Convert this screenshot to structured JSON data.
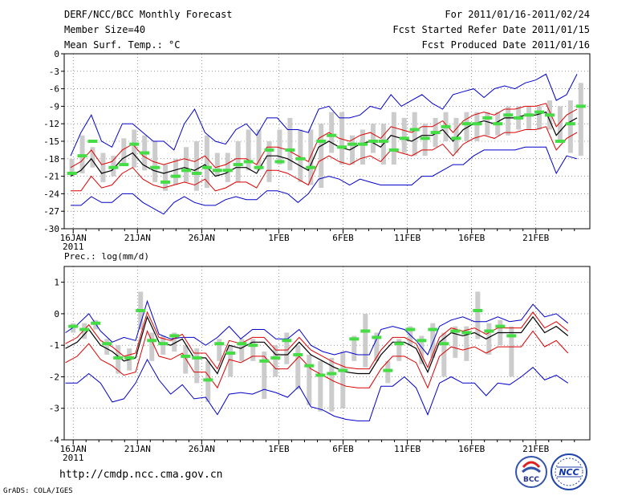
{
  "header": {
    "title": "DERF/NCC/BCC Monthly Forecast",
    "member_size": "Member Size=40",
    "variable": "Mean Surf. Temp.: °C",
    "period": "For 2011/01/16-2011/02/24",
    "fcst_started": "Fcst Started Refer Date 2011/01/15",
    "fcst_produced": "Fcst Produced Date 2011/01/16"
  },
  "footer": {
    "url": "http://cmdp.ncc.cma.gov.cn",
    "grads": "GrADS: COLA/IGES",
    "logo_bcc": "BCC",
    "logo_ncc": "NCC"
  },
  "colors": {
    "mean": "#000000",
    "inner_band": "#dd0000",
    "outer_band": "#0000cc",
    "observed": "#44dd44",
    "range_bar": "#cccccc",
    "grid": "#555555"
  },
  "chart_data": [
    {
      "type": "line",
      "title": "Mean Surf. Temp.: °C",
      "year_label": "2011",
      "x_tick_labels": [
        "16JAN",
        "21JAN",
        "26JAN",
        "1FEB",
        "6FEB",
        "11FEB",
        "16FEB",
        "21FEB"
      ],
      "x_tick_days": [
        1,
        6,
        11,
        17,
        22,
        27,
        32,
        37
      ],
      "ylim": [
        -30,
        0
      ],
      "yticks": [
        0,
        -3,
        -6,
        -9,
        -12,
        -15,
        -18,
        -21,
        -24,
        -27,
        -30
      ],
      "series": [
        {
          "name": "ensemble-mean",
          "values": [
            -21,
            -20,
            -18,
            -20.5,
            -20,
            -18,
            -17,
            -19,
            -20,
            -20.5,
            -20,
            -19.5,
            -20,
            -19,
            -21,
            -20.5,
            -19.5,
            -19.5,
            -20.5,
            -17.5,
            -17.5,
            -18,
            -19,
            -20,
            -16,
            -15,
            -16,
            -16.5,
            -15.5,
            -15,
            -16,
            -14,
            -14.5,
            -15,
            -14,
            -14,
            -13,
            -15,
            -13,
            -12,
            -11.5,
            -12,
            -11,
            -11,
            -10.5,
            -10.5,
            -10,
            -14,
            -12,
            -11
          ]
        },
        {
          "name": "inner-upper",
          "values": [
            -19.5,
            -18.5,
            -16.5,
            -19,
            -18.5,
            -16.5,
            -15.5,
            -17.5,
            -18.5,
            -19,
            -18.5,
            -18,
            -18.5,
            -17.5,
            -19.5,
            -19,
            -18,
            -18,
            -19,
            -16,
            -16,
            -16.5,
            -17.5,
            -18.5,
            -14.5,
            -13.5,
            -14.5,
            -15,
            -14,
            -13.5,
            -14.5,
            -12.5,
            -13,
            -13.5,
            -12.5,
            -12.5,
            -11.5,
            -13.5,
            -11.5,
            -10.5,
            -10,
            -10.5,
            -9.5,
            -9.5,
            -9,
            -9,
            -8.5,
            -12.5,
            -10.5,
            -9.5
          ]
        },
        {
          "name": "inner-lower",
          "values": [
            -23.5,
            -23.5,
            -21,
            -23,
            -22.5,
            -20.5,
            -19.5,
            -21.5,
            -22.5,
            -23,
            -22.5,
            -22,
            -22.5,
            -21.5,
            -23.5,
            -23,
            -22,
            -22,
            -23,
            -20,
            -20,
            -20.5,
            -21.5,
            -22.5,
            -18.5,
            -17.5,
            -18.5,
            -19,
            -18,
            -17.5,
            -18.5,
            -16.5,
            -17,
            -17.5,
            -16.5,
            -16.5,
            -15.5,
            -17.5,
            -15.5,
            -14.5,
            -14,
            -14.5,
            -13.5,
            -13.5,
            -13,
            -13,
            -12.5,
            -16.5,
            -14.5,
            -13.5
          ]
        },
        {
          "name": "outer-upper",
          "values": [
            -17.5,
            -13.5,
            -10.5,
            -15,
            -16,
            -12,
            -12,
            -13.5,
            -15,
            -15,
            -16.5,
            -12,
            -9.5,
            -13.5,
            -15,
            -15.5,
            -13,
            -12,
            -14,
            -11,
            -11,
            -13,
            -13,
            -13.5,
            -9.5,
            -9,
            -11,
            -11,
            -10.5,
            -9,
            -9.5,
            -7,
            -9,
            -8,
            -7,
            -8.5,
            -9.5,
            -7,
            -6.5,
            -6,
            -7.5,
            -6,
            -5.5,
            -6,
            -5,
            -4.5,
            -3.5,
            -8,
            -7,
            -3.5
          ]
        },
        {
          "name": "outer-lower",
          "values": [
            -26,
            -26,
            -24.5,
            -25.5,
            -25.5,
            -24,
            -24,
            -25.5,
            -26.5,
            -27.5,
            -25.5,
            -24.5,
            -25.5,
            -26,
            -26,
            -25,
            -24.5,
            -25,
            -25,
            -23.5,
            -23.5,
            -24,
            -25.5,
            -24,
            -21.5,
            -21,
            -21.5,
            -22.5,
            -21.5,
            -22,
            -22.5,
            -22.5,
            -22.5,
            -22.5,
            -21,
            -21,
            -20,
            -19,
            -19,
            -17.5,
            -16.5,
            -16.5,
            -16.5,
            -16.5,
            -16,
            -16,
            -16,
            -20.5,
            -17.5,
            -18
          ]
        },
        {
          "name": "observed",
          "values": [
            -20.5,
            -17.5,
            -15,
            null,
            -19.5,
            -19,
            -15.5,
            -17,
            -19.5,
            -22,
            -21,
            -20,
            -20.5,
            -19.5,
            -20,
            -20,
            -19,
            -18.5,
            -19.5,
            -16.5,
            -18.5,
            -16.5,
            -18,
            -19.5,
            -15,
            -14,
            -16,
            -15.5,
            -15.5,
            -15,
            -15,
            -16.5,
            -14.5,
            -13,
            -14.5,
            -13.5,
            -12.5,
            -14.5,
            -12,
            -12,
            -11,
            -12,
            -10.5,
            -11,
            -10.5,
            -10,
            -10.5,
            -15,
            -12,
            -9
          ]
        },
        {
          "name": "range-top",
          "values": [
            -18,
            -14,
            -16,
            -17,
            -17.5,
            -14.5,
            -13,
            -14,
            -15,
            -19,
            -18,
            -16,
            -15,
            -14,
            -17,
            -17,
            -15,
            -13,
            -13,
            -15,
            -13,
            -11,
            -13,
            -13,
            -12,
            -10,
            -10,
            -14,
            -13,
            -12,
            -12,
            -10,
            -11,
            -10,
            -12,
            -11,
            -10,
            -11,
            -10,
            -10,
            -10,
            -10,
            -9,
            -9,
            -9,
            -9,
            -8,
            -9,
            -8,
            -5
          ]
        },
        {
          "name": "range-bottom",
          "values": [
            -21,
            -20.5,
            -19.5,
            -22,
            -21,
            -19,
            -19.5,
            -20,
            -22,
            -23.5,
            -22.5,
            -22,
            -23.5,
            -23,
            -21,
            -22,
            -22,
            -20,
            -20,
            -22,
            -19,
            -20,
            -22,
            -22.5,
            -23,
            -17,
            -19,
            -19,
            -19,
            -17,
            -19,
            -19,
            -17,
            -17.5,
            -17.5,
            -16,
            -15,
            -17,
            -15,
            -15,
            -14,
            -14,
            -14,
            -13,
            -13,
            -13,
            -13,
            -15,
            -17,
            -17.5
          ]
        }
      ]
    },
    {
      "type": "line",
      "title": "Prec.: log(mm/d)",
      "year_label": "2011",
      "x_tick_labels": [
        "16JAN",
        "21JAN",
        "26JAN",
        "1FEB",
        "6FEB",
        "11FEB",
        "16FEB",
        "21FEB"
      ],
      "x_tick_days": [
        1,
        6,
        11,
        17,
        22,
        27,
        32,
        37
      ],
      "ylim": [
        -4,
        1.5
      ],
      "yticks": [
        1,
        0,
        -1,
        -2,
        -3,
        -4
      ],
      "series": [
        {
          "name": "ensemble-mean",
          "values": [
            -1.1,
            -0.9,
            -0.5,
            -1.0,
            -1.2,
            -1.5,
            -1.4,
            -0.1,
            -0.9,
            -1.0,
            -0.8,
            -1.4,
            -1.4,
            -1.9,
            -1.0,
            -1.1,
            -0.9,
            -0.9,
            -1.3,
            -1.3,
            -0.9,
            -1.3,
            -1.5,
            -1.7,
            -1.85,
            -1.9,
            -1.9,
            -1.3,
            -0.9,
            -0.9,
            -1.1,
            -1.85,
            -0.9,
            -0.6,
            -0.7,
            -0.6,
            -0.8,
            -0.6,
            -0.6,
            -0.6,
            -0.1,
            -0.6,
            -0.4,
            -0.7
          ]
        },
        {
          "name": "inner-upper",
          "values": [
            -0.95,
            -0.75,
            -0.35,
            -0.85,
            -1.05,
            -1.35,
            -1.25,
            0.05,
            -0.75,
            -0.85,
            -0.65,
            -1.25,
            -1.25,
            -1.75,
            -0.85,
            -0.95,
            -0.75,
            -0.75,
            -1.15,
            -1.15,
            -0.75,
            -1.15,
            -1.35,
            -1.55,
            -1.7,
            -1.75,
            -1.75,
            -1.15,
            -0.75,
            -0.75,
            -0.95,
            -1.7,
            -0.75,
            -0.45,
            -0.55,
            -0.45,
            -0.65,
            -0.45,
            -0.45,
            -0.45,
            0.05,
            -0.45,
            -0.25,
            -0.55
          ]
        },
        {
          "name": "inner-lower",
          "values": [
            -1.55,
            -1.35,
            -0.95,
            -1.45,
            -1.65,
            -1.95,
            -1.85,
            -0.55,
            -1.35,
            -1.45,
            -1.25,
            -1.85,
            -1.85,
            -2.35,
            -1.45,
            -1.55,
            -1.35,
            -1.35,
            -1.75,
            -1.75,
            -1.35,
            -1.75,
            -1.95,
            -2.15,
            -2.3,
            -2.35,
            -2.35,
            -1.75,
            -1.35,
            -1.35,
            -1.55,
            -2.35,
            -1.35,
            -1.05,
            -1.15,
            -1.05,
            -1.25,
            -1.05,
            -1.05,
            -1.05,
            -0.55,
            -1.05,
            -0.85,
            -1.25
          ]
        },
        {
          "name": "outer-upper",
          "values": [
            -0.6,
            -0.35,
            0.0,
            -0.55,
            -0.9,
            -0.75,
            -0.85,
            0.4,
            -0.65,
            -0.8,
            -0.75,
            -0.75,
            -1.0,
            -0.75,
            -0.4,
            -0.8,
            -0.5,
            -0.5,
            -0.8,
            -0.8,
            -0.5,
            -1.0,
            -1.2,
            -1.3,
            -1.2,
            -1.3,
            -1.3,
            -0.5,
            -0.4,
            -0.5,
            -0.85,
            -1.3,
            -0.4,
            -0.2,
            -0.1,
            -0.25,
            -0.25,
            -0.1,
            -0.25,
            -0.2,
            0.3,
            -0.1,
            0.0,
            -0.3
          ]
        },
        {
          "name": "outer-lower",
          "values": [
            -2.2,
            -2.2,
            -1.9,
            -2.2,
            -2.8,
            -2.7,
            -2.2,
            -1.45,
            -2.1,
            -2.55,
            -2.25,
            -2.7,
            -2.65,
            -3.2,
            -2.55,
            -2.5,
            -2.55,
            -2.4,
            -2.5,
            -2.65,
            -2.3,
            -2.95,
            -3.05,
            -3.25,
            -3.35,
            -3.4,
            -3.4,
            -2.3,
            -2.3,
            -2.0,
            -2.35,
            -3.2,
            -2.2,
            -2.0,
            -2.2,
            -2.2,
            -2.6,
            -2.2,
            -2.25,
            -2.0,
            -1.7,
            -2.1,
            -1.95,
            -2.2
          ]
        },
        {
          "name": "observed",
          "values": [
            -0.4,
            -0.5,
            -0.3,
            -0.95,
            -1.4,
            -1.4,
            0.1,
            -0.85,
            -0.95,
            -0.7,
            -1.35,
            -1.4,
            -2.1,
            -0.95,
            -1.25,
            -0.95,
            -1.0,
            -1.5,
            -1.4,
            -0.85,
            -1.3,
            -1.65,
            -1.95,
            -1.9,
            -1.8,
            -0.8,
            -0.55,
            -0.75,
            -1.8,
            -0.95,
            -0.5,
            -0.85,
            -0.5,
            -0.95,
            -0.55,
            -0.6,
            0.1,
            -0.55,
            -0.4,
            -0.7,
            null,
            null,
            null,
            null
          ]
        },
        {
          "name": "range-top",
          "values": [
            -0.3,
            -0.3,
            -0.2,
            -0.8,
            -1.0,
            -1.1,
            0.7,
            -0.6,
            -0.7,
            -0.6,
            -1.0,
            -1.1,
            -1.5,
            -0.8,
            -1.0,
            -0.8,
            -0.8,
            -1.2,
            -1.0,
            -0.6,
            -1.0,
            -1.3,
            -1.5,
            -1.4,
            -1.2,
            -0.7,
            0.0,
            -0.6,
            -1.5,
            -0.8,
            -0.4,
            -0.7,
            -0.3,
            -0.6,
            -0.4,
            -0.4,
            0.7,
            -0.3,
            -0.2,
            -0.4,
            null,
            null,
            null,
            null
          ]
        },
        {
          "name": "range-bottom",
          "values": [
            -0.6,
            -0.8,
            -0.5,
            -1.3,
            -1.9,
            -1.8,
            -0.5,
            -1.5,
            -1.3,
            -1.2,
            -1.9,
            -2.2,
            -2.8,
            -1.5,
            -2.0,
            -1.5,
            -1.5,
            -2.7,
            -2.0,
            -1.6,
            -2.4,
            -2.9,
            -3.1,
            -3.1,
            -3.0,
            -1.5,
            -1.7,
            -1.5,
            -2.2,
            -1.5,
            -1.0,
            -1.6,
            -1.4,
            -2.0,
            -1.4,
            -1.5,
            -0.8,
            -1.3,
            -1.0,
            -2.0,
            null,
            null,
            null,
            null
          ]
        }
      ]
    }
  ]
}
